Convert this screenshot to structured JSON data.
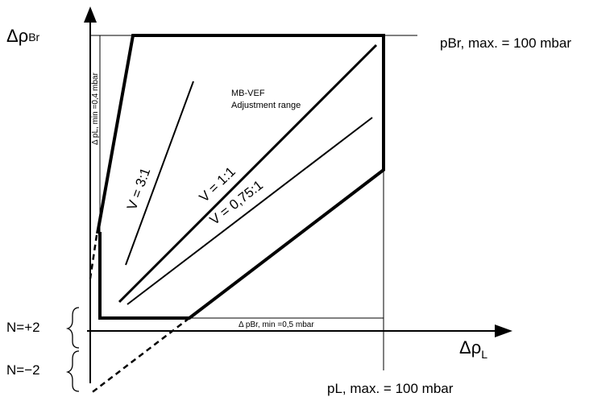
{
  "axes": {
    "y_label": {
      "delta": "Δ",
      "symbol": "ρ",
      "subscript": "Br"
    },
    "x_label": {
      "delta": "Δ",
      "symbol": "ρ",
      "subscript": "L"
    }
  },
  "limits": {
    "pBr_max": "pBr, max. = 100 mbar",
    "pL_max": "pL, max. = 100 mbar",
    "pL_min": "Δ pL, min =0,4 mbar",
    "pBr_min": "Δ pBr, min =0,5 mbar"
  },
  "region": {
    "title_line1": "MB-VEF",
    "title_line2": "Adjustment range"
  },
  "ratio_lines": [
    {
      "label": "V = 3:1"
    },
    {
      "label": "V = 1:1"
    },
    {
      "label": "V = 0,75:1"
    }
  ],
  "n_labels": {
    "plus": "N=+2",
    "minus": "N=−2"
  }
}
